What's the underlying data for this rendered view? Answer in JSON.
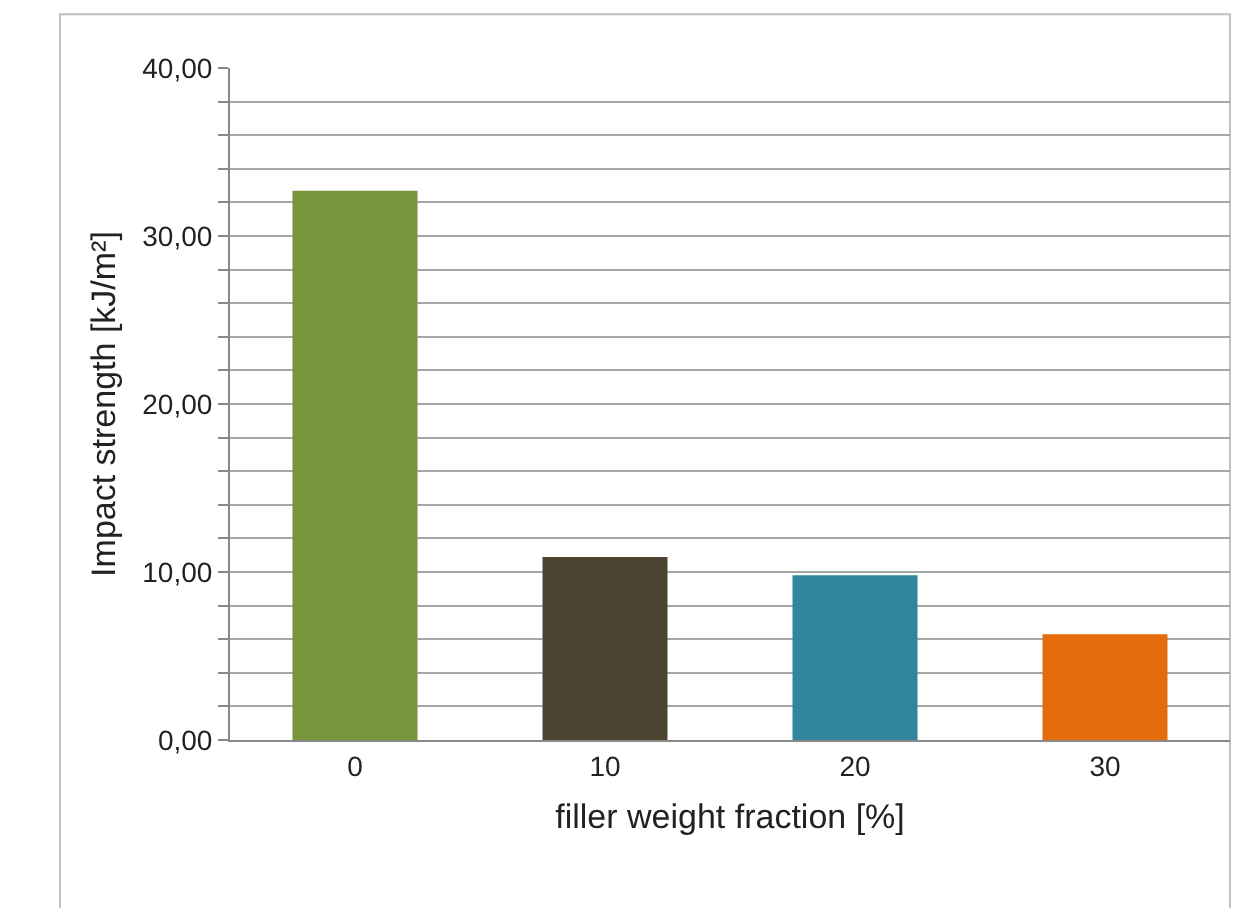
{
  "chart_data": {
    "type": "bar",
    "xlabel": "filler weight fraction [%]",
    "ylabel": "Impact strength [kJ/m²]",
    "categories": [
      "0",
      "10",
      "20",
      "30"
    ],
    "values": [
      32.7,
      10.9,
      9.8,
      6.3
    ],
    "colors": [
      "#77963b",
      "#4a4430",
      "#31859c",
      "#e46c0a"
    ],
    "ylim": [
      0,
      40
    ],
    "yticks": [
      {
        "value": 0,
        "label": "0,00"
      },
      {
        "value": 2,
        "label": null
      },
      {
        "value": 4,
        "label": null
      },
      {
        "value": 6,
        "label": null
      },
      {
        "value": 8,
        "label": null
      },
      {
        "value": 10,
        "label": "10,00"
      },
      {
        "value": 12,
        "label": null
      },
      {
        "value": 14,
        "label": null
      },
      {
        "value": 16,
        "label": null
      },
      {
        "value": 18,
        "label": null
      },
      {
        "value": 20,
        "label": "20,00"
      },
      {
        "value": 22,
        "label": null
      },
      {
        "value": 24,
        "label": null
      },
      {
        "value": 26,
        "label": null
      },
      {
        "value": 28,
        "label": null
      },
      {
        "value": 30,
        "label": "30,00"
      },
      {
        "value": 32,
        "label": null
      },
      {
        "value": 34,
        "label": null
      },
      {
        "value": 36,
        "label": null
      },
      {
        "value": 38,
        "label": null
      },
      {
        "value": 40,
        "label": "40,00"
      }
    ],
    "grid": "y"
  }
}
